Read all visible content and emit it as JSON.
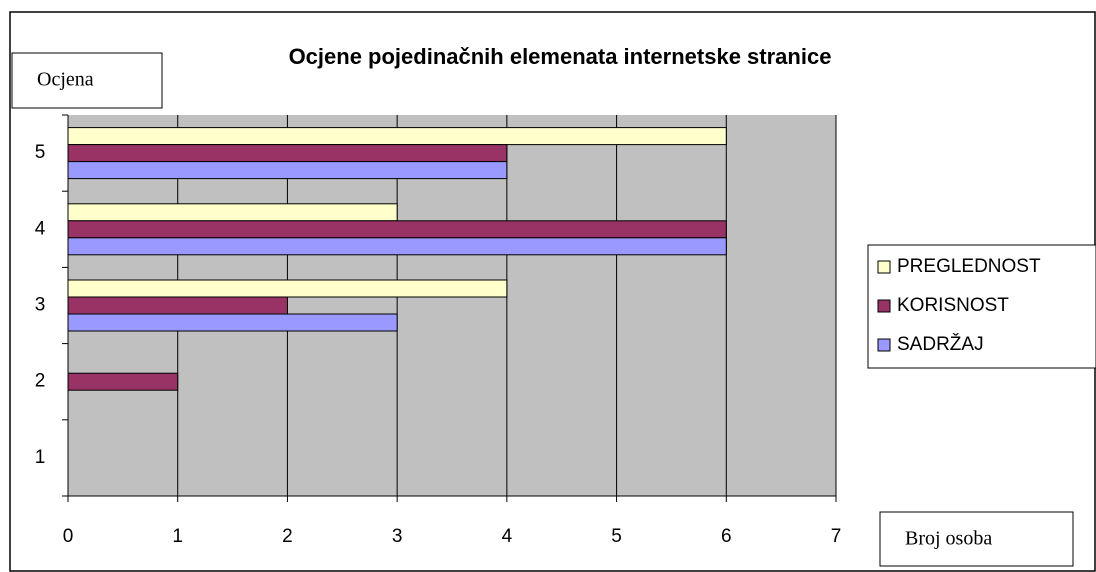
{
  "chart_data": {
    "type": "hbar",
    "title": "Ocjene pojedinačnih elemenata internetske stranice",
    "y_label": "Ocjena",
    "x_label": "Broj osoba",
    "categories": [
      "1",
      "2",
      "3",
      "4",
      "5"
    ],
    "series": [
      {
        "name": "PREGLEDNOST",
        "color": "#ffffcc",
        "values": [
          0,
          0,
          4,
          3,
          6
        ]
      },
      {
        "name": "KORISNOST",
        "color": "#993366",
        "values": [
          0,
          1,
          2,
          6,
          4
        ]
      },
      {
        "name": "SADRŽAJ",
        "color": "#9999ff",
        "values": [
          0,
          0,
          3,
          6,
          4
        ]
      }
    ],
    "xlim": [
      0,
      7
    ],
    "xticks": [
      0,
      1,
      2,
      3,
      4,
      5,
      6,
      7
    ],
    "grid": true,
    "legend": "right"
  }
}
